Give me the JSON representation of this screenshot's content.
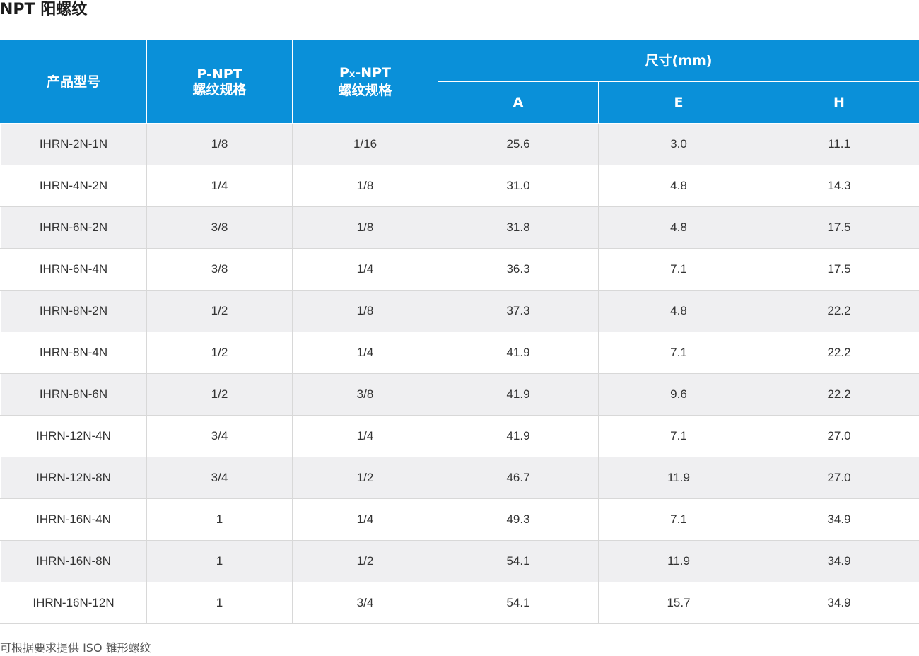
{
  "title": "NPT 阳螺纹",
  "header": {
    "model": "产品型号",
    "p_npt": [
      "P-NPT",
      "螺纹规格"
    ],
    "px_npt": {
      "base": "P",
      "sub": "x",
      "rest": "-NPT",
      "line2": "螺纹规格"
    },
    "dims": "尺寸(mm)",
    "a": "A",
    "e": "E",
    "h": "H"
  },
  "rows": [
    [
      "IHRN-2N-1N",
      "1/8",
      "1/16",
      "25.6",
      "3.0",
      "11.1"
    ],
    [
      "IHRN-4N-2N",
      "1/4",
      "1/8",
      "31.0",
      "4.8",
      "14.3"
    ],
    [
      "IHRN-6N-2N",
      "3/8",
      "1/8",
      "31.8",
      "4.8",
      "17.5"
    ],
    [
      "IHRN-6N-4N",
      "3/8",
      "1/4",
      "36.3",
      "7.1",
      "17.5"
    ],
    [
      "IHRN-8N-2N",
      "1/2",
      "1/8",
      "37.3",
      "4.8",
      "22.2"
    ],
    [
      "IHRN-8N-4N",
      "1/2",
      "1/4",
      "41.9",
      "7.1",
      "22.2"
    ],
    [
      "IHRN-8N-6N",
      "1/2",
      "3/8",
      "41.9",
      "9.6",
      "22.2"
    ],
    [
      "IHRN-12N-4N",
      "3/4",
      "1/4",
      "41.9",
      "7.1",
      "27.0"
    ],
    [
      "IHRN-12N-8N",
      "3/4",
      "1/2",
      "46.7",
      "11.9",
      "27.0"
    ],
    [
      "IHRN-16N-4N",
      "1",
      "1/4",
      "49.3",
      "7.1",
      "34.9"
    ],
    [
      "IHRN-16N-8N",
      "1",
      "1/2",
      "54.1",
      "11.9",
      "34.9"
    ],
    [
      "IHRN-16N-12N",
      "1",
      "3/4",
      "54.1",
      "15.7",
      "34.9"
    ]
  ],
  "note": "可根据要求提供 ISO 锥形螺纹",
  "colors": {
    "header_bg": "#0a90d9",
    "stripe": "#efeff1"
  }
}
